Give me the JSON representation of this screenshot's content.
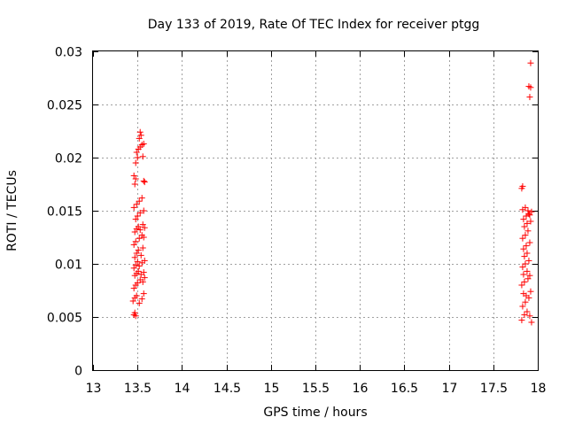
{
  "chart_data": {
    "type": "scatter",
    "title": "Day 133 of 2019, Rate Of TEC Index for receiver ptgg",
    "xlabel": "GPS time / hours",
    "ylabel": "ROTI / TECUs",
    "xlim": [
      13,
      18
    ],
    "ylim": [
      0,
      0.03
    ],
    "x_ticks": [
      13,
      13.5,
      14,
      14.5,
      15,
      15.5,
      16,
      16.5,
      17,
      17.5,
      18
    ],
    "x_tick_labels": [
      "13",
      "13.5",
      "14",
      "14.5",
      "15",
      "15.5",
      "16",
      "16.5",
      "17",
      "17.5",
      "18"
    ],
    "y_ticks": [
      0,
      0.005,
      0.01,
      0.015,
      0.02,
      0.025,
      0.03
    ],
    "y_tick_labels": [
      "0",
      "0.005",
      "0.01",
      "0.015",
      "0.02",
      "0.025",
      "0.03"
    ],
    "grid": true,
    "marker": "+",
    "marker_color": "#ff0000",
    "series": [
      {
        "name": "ROTI",
        "points": [
          [
            13.46,
            0.0052
          ],
          [
            13.47,
            0.0054
          ],
          [
            13.48,
            0.0051
          ],
          [
            13.45,
            0.0065
          ],
          [
            13.47,
            0.0068
          ],
          [
            13.49,
            0.007
          ],
          [
            13.52,
            0.0063
          ],
          [
            13.55,
            0.0067
          ],
          [
            13.57,
            0.0072
          ],
          [
            13.46,
            0.0077
          ],
          [
            13.48,
            0.008
          ],
          [
            13.5,
            0.0082
          ],
          [
            13.53,
            0.0085
          ],
          [
            13.56,
            0.0083
          ],
          [
            13.58,
            0.0087
          ],
          [
            13.47,
            0.0089
          ],
          [
            13.49,
            0.0091
          ],
          [
            13.51,
            0.0093
          ],
          [
            13.54,
            0.009
          ],
          [
            13.57,
            0.0092
          ],
          [
            13.46,
            0.0096
          ],
          [
            13.48,
            0.0099
          ],
          [
            13.5,
            0.0102
          ],
          [
            13.52,
            0.0098
          ],
          [
            13.55,
            0.0101
          ],
          [
            13.58,
            0.0103
          ],
          [
            13.47,
            0.0106
          ],
          [
            13.49,
            0.011
          ],
          [
            13.51,
            0.0113
          ],
          [
            13.54,
            0.0108
          ],
          [
            13.56,
            0.0115
          ],
          [
            13.46,
            0.0118
          ],
          [
            13.48,
            0.0121
          ],
          [
            13.52,
            0.0124
          ],
          [
            13.55,
            0.0127
          ],
          [
            13.57,
            0.0125
          ],
          [
            13.47,
            0.013
          ],
          [
            13.49,
            0.0133
          ],
          [
            13.51,
            0.0135
          ],
          [
            13.53,
            0.0132
          ],
          [
            13.56,
            0.0137
          ],
          [
            13.58,
            0.0134
          ],
          [
            13.48,
            0.0142
          ],
          [
            13.5,
            0.0145
          ],
          [
            13.53,
            0.0148
          ],
          [
            13.57,
            0.015
          ],
          [
            13.46,
            0.0153
          ],
          [
            13.49,
            0.0156
          ],
          [
            13.52,
            0.0159
          ],
          [
            13.55,
            0.0162
          ],
          [
            13.47,
            0.0175
          ],
          [
            13.48,
            0.018
          ],
          [
            13.46,
            0.0183
          ],
          [
            13.57,
            0.0178
          ],
          [
            13.58,
            0.0177
          ],
          [
            13.48,
            0.0195
          ],
          [
            13.5,
            0.02
          ],
          [
            13.49,
            0.0205
          ],
          [
            13.56,
            0.0201
          ],
          [
            13.51,
            0.0208
          ],
          [
            13.53,
            0.021
          ],
          [
            13.55,
            0.0212
          ],
          [
            13.57,
            0.0213
          ],
          [
            13.52,
            0.0218
          ],
          [
            13.54,
            0.0221
          ],
          [
            13.53,
            0.0224
          ],
          [
            17.82,
            0.0047
          ],
          [
            17.85,
            0.0052
          ],
          [
            17.88,
            0.0055
          ],
          [
            17.91,
            0.0051
          ],
          [
            17.93,
            0.0045
          ],
          [
            17.83,
            0.006
          ],
          [
            17.86,
            0.0064
          ],
          [
            17.9,
            0.0068
          ],
          [
            17.84,
            0.0072
          ],
          [
            17.87,
            0.007
          ],
          [
            17.92,
            0.0074
          ],
          [
            17.82,
            0.008
          ],
          [
            17.85,
            0.0083
          ],
          [
            17.89,
            0.0086
          ],
          [
            17.84,
            0.009
          ],
          [
            17.88,
            0.0093
          ],
          [
            17.91,
            0.0089
          ],
          [
            17.83,
            0.0097
          ],
          [
            17.86,
            0.01
          ],
          [
            17.9,
            0.0103
          ],
          [
            17.85,
            0.0107
          ],
          [
            17.88,
            0.011
          ],
          [
            17.84,
            0.0114
          ],
          [
            17.87,
            0.0117
          ],
          [
            17.91,
            0.012
          ],
          [
            17.83,
            0.0124
          ],
          [
            17.86,
            0.0127
          ],
          [
            17.89,
            0.0131
          ],
          [
            17.85,
            0.0135
          ],
          [
            17.88,
            0.0138
          ],
          [
            17.92,
            0.014
          ],
          [
            17.84,
            0.0142
          ],
          [
            17.87,
            0.0145
          ],
          [
            17.9,
            0.0147
          ],
          [
            17.93,
            0.0149
          ],
          [
            17.83,
            0.0151
          ],
          [
            17.86,
            0.0153
          ],
          [
            17.89,
            0.015
          ],
          [
            17.91,
            0.0146
          ],
          [
            17.82,
            0.0171
          ],
          [
            17.83,
            0.0173
          ],
          [
            17.91,
            0.0257
          ],
          [
            17.9,
            0.0267
          ],
          [
            17.92,
            0.0266
          ],
          [
            17.92,
            0.0289
          ]
        ]
      }
    ]
  }
}
